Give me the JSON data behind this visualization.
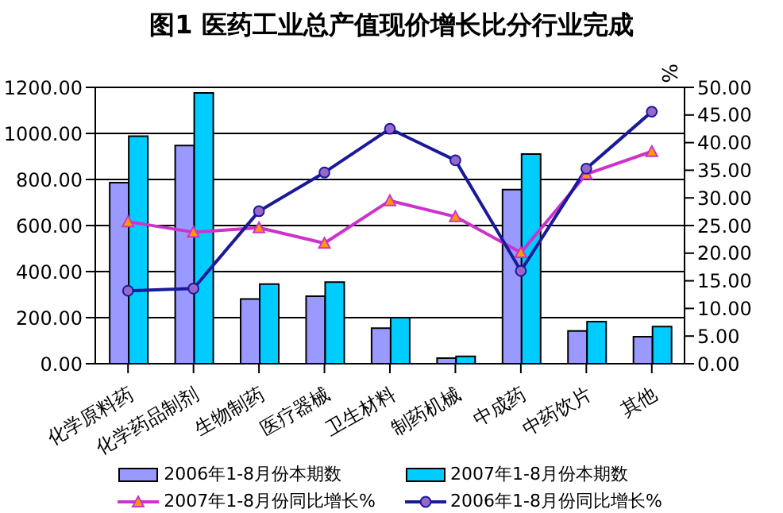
{
  "chart_data": {
    "type": "bar",
    "title": "图1  医药工业总产值现价增长比分行业完成",
    "y2label": "%",
    "categories": [
      "化学原料药",
      "化学药品制剂",
      "生物制药",
      "医疗器械",
      "卫生材料",
      "制药机械",
      "中成药",
      "中药饮片",
      "其他"
    ],
    "series": [
      {
        "name": "2006年1-8月份本期数",
        "color": "#9999ff",
        "values": [
          786,
          947,
          281,
          293,
          154,
          24,
          756,
          142,
          117
        ]
      },
      {
        "name": "2007年1-8月份本期数",
        "color": "#00ccff",
        "values": [
          988,
          1176,
          346,
          354,
          200,
          32,
          910,
          183,
          161
        ]
      },
      {
        "name": "2007年1-8月份同比增长%",
        "type": "line",
        "axis": "y2",
        "color": "#cc33cc",
        "marker": "triangle",
        "values": [
          25.7,
          23.8,
          24.6,
          21.8,
          29.5,
          26.6,
          20.1,
          34.3,
          38.4
        ]
      },
      {
        "name": "2006年1-8月份同比增长%",
        "type": "line",
        "axis": "y2",
        "color": "#1a1a99",
        "marker": "circle",
        "values": [
          13.2,
          13.6,
          27.6,
          34.6,
          42.5,
          36.8,
          16.8,
          35.3,
          45.6
        ]
      }
    ],
    "ylim": [
      0,
      1200
    ],
    "yticks": [
      {
        "value": 0,
        "label": "0.00"
      },
      {
        "value": 200,
        "label": "200.00"
      },
      {
        "value": 400,
        "label": "400.00"
      },
      {
        "value": 600,
        "label": "600.00"
      },
      {
        "value": 800,
        "label": "800.00"
      },
      {
        "value": 1000,
        "label": "1000.00"
      },
      {
        "value": 1200,
        "label": "1200.00"
      }
    ],
    "y2lim": [
      0,
      50
    ],
    "y2ticks": [
      {
        "value": 0,
        "label": "0.00"
      },
      {
        "value": 5,
        "label": "5.00"
      },
      {
        "value": 10,
        "label": "10.00"
      },
      {
        "value": 15,
        "label": "15.00"
      },
      {
        "value": 20,
        "label": "20.00"
      },
      {
        "value": 25,
        "label": "25.00"
      },
      {
        "value": 30,
        "label": "30.00"
      },
      {
        "value": 35,
        "label": "35.00"
      },
      {
        "value": 40,
        "label": "40.00"
      },
      {
        "value": 45,
        "label": "45.00"
      },
      {
        "value": 50,
        "label": "50.00"
      }
    ],
    "grid": "y",
    "legend": "bottom"
  }
}
